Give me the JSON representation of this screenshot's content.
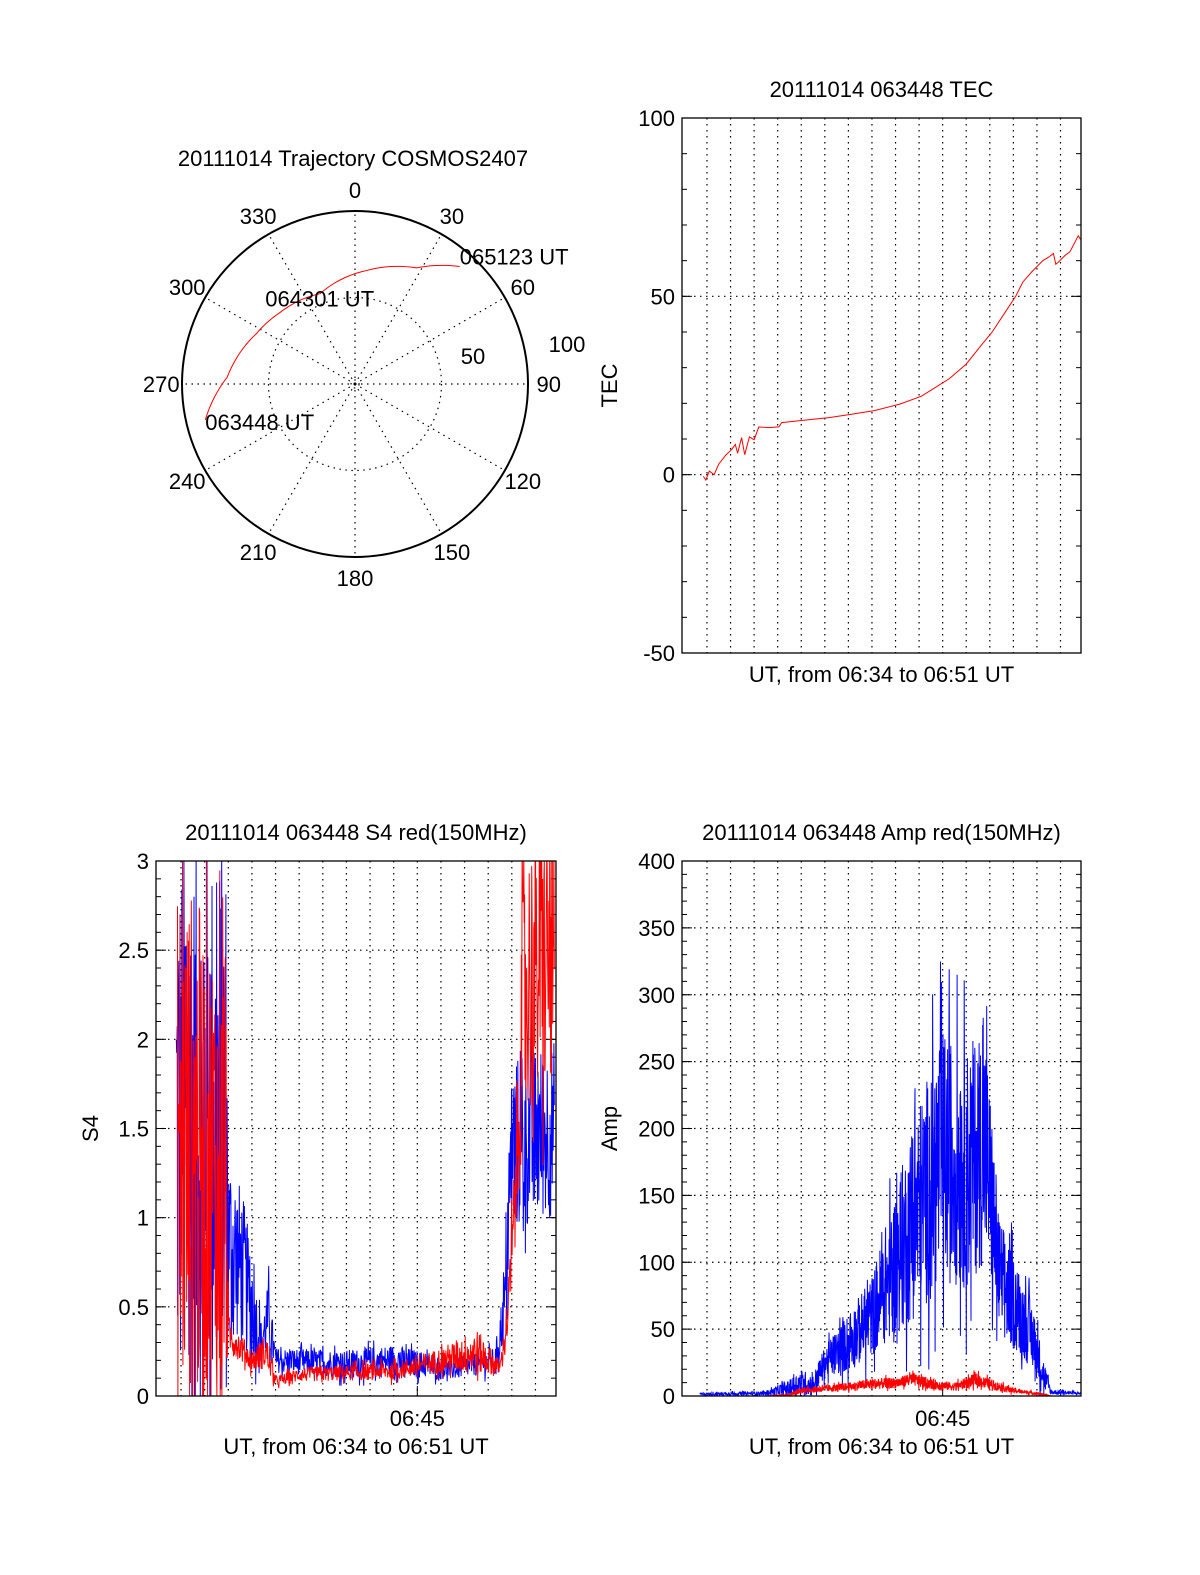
{
  "colors": {
    "red": "#ff0000",
    "blue": "#0000ff",
    "axis": "#000000"
  },
  "chart_data": [
    {
      "type": "polar",
      "title": "20111014 Trajectory COSMOS2407",
      "azimuth_labels": [
        "0",
        "30",
        "60",
        "90",
        "120",
        "150",
        "180",
        "210",
        "240",
        "270",
        "300",
        "330"
      ],
      "azimuth_values": [
        0,
        30,
        60,
        90,
        120,
        150,
        180,
        210,
        240,
        270,
        300,
        330
      ],
      "radial_labels": [
        "50",
        "100"
      ],
      "radial_values": [
        50,
        100
      ],
      "rlim": [
        0,
        100
      ],
      "series": [
        {
          "name": "trajectory",
          "color": "#ff0000",
          "points": [
            [
              256.5,
              89
            ],
            [
              273,
              74
            ],
            [
              297,
              64
            ],
            [
              313,
              60
            ],
            [
              339,
              56
            ],
            [
              6,
              66
            ],
            [
              28,
              76
            ],
            [
              41.7,
              91
            ]
          ]
        }
      ],
      "annotations": [
        {
          "text": "063448 UT",
          "az": 256.5,
          "r": 89
        },
        {
          "text": "064301 UT",
          "az": 339,
          "r": 56
        },
        {
          "text": "065123 UT",
          "az": 41.7,
          "r": 91
        }
      ]
    },
    {
      "type": "line",
      "title": "20111014 063448 TEC",
      "ylabel": "TEC",
      "xlabel": "UT, from 06:34 to 06:51 UT",
      "xlim": [
        -0.06,
        16.87
      ],
      "ylim": [
        -50,
        100
      ],
      "yticks": [
        -50,
        0,
        50,
        100
      ],
      "ytick_labels": [
        "-50",
        "0",
        "50",
        "100"
      ],
      "yminor": 10,
      "xgrid": [
        1,
        2,
        3,
        4,
        5,
        6,
        7,
        8,
        9,
        10,
        11,
        12,
        13,
        14,
        15,
        16
      ],
      "xticks": [],
      "xtick_labels": [],
      "series": [
        {
          "name": "TEC",
          "color": "#ff0000",
          "points": [
            [
              0.85,
              -0.5
            ],
            [
              0.95,
              -1.5
            ],
            [
              1.1,
              1
            ],
            [
              1.3,
              0
            ],
            [
              1.5,
              3
            ],
            [
              1.8,
              5.5
            ],
            [
              2.04,
              7
            ],
            [
              2.2,
              8.5
            ],
            [
              2.3,
              6
            ],
            [
              2.47,
              10.4
            ],
            [
              2.6,
              5.6
            ],
            [
              2.8,
              10.6
            ],
            [
              3.0,
              9.8
            ],
            [
              3.2,
              13.4
            ],
            [
              3.6,
              13.2
            ],
            [
              4.05,
              13.4
            ],
            [
              4.17,
              14.6
            ],
            [
              5.0,
              15.2
            ],
            [
              6.18,
              16
            ],
            [
              7.2,
              17
            ],
            [
              8.13,
              18
            ],
            [
              9.2,
              19.8
            ],
            [
              10.1,
              22
            ],
            [
              10.7,
              24.5
            ],
            [
              11.3,
              27
            ],
            [
              12.0,
              31
            ],
            [
              12.6,
              36
            ],
            [
              13.1,
              40
            ],
            [
              13.6,
              45
            ],
            [
              14.1,
              50
            ],
            [
              14.4,
              54
            ],
            [
              14.8,
              57
            ],
            [
              15.25,
              60
            ],
            [
              15.5,
              61
            ],
            [
              15.7,
              62
            ],
            [
              15.8,
              59
            ],
            [
              15.9,
              59.5
            ],
            [
              16.2,
              61.5
            ],
            [
              16.4,
              62.5
            ],
            [
              16.6,
              65
            ],
            [
              16.75,
              67
            ],
            [
              16.85,
              66
            ]
          ]
        }
      ]
    },
    {
      "type": "line",
      "title": "20111014 063448 S4 red(150MHz)",
      "ylabel": "S4",
      "xlabel": "UT, from 06:34 to 06:51 UT",
      "xlim": [
        -0.06,
        16.87
      ],
      "ylim": [
        0,
        3
      ],
      "yticks": [
        0,
        0.5,
        1,
        1.5,
        2,
        2.5,
        3
      ],
      "ytick_labels": [
        "0",
        "0.5",
        "1",
        "1.5",
        "2",
        "2.5",
        "3"
      ],
      "yminor": 0.1,
      "xgrid": [
        1,
        2,
        3,
        4,
        5,
        6,
        7,
        8,
        9,
        10,
        11,
        12,
        13,
        14,
        15,
        16
      ],
      "xticks": [
        11
      ],
      "xtick_labels": [
        "06:45"
      ],
      "series": [
        {
          "name": "blue",
          "color": "#0000ff",
          "samples": 900,
          "profile": [
            [
              0.8,
              1.5,
              1.6
            ],
            [
              2.9,
              1.5,
              1.6
            ],
            [
              3.0,
              0.9,
              0.5
            ],
            [
              3.6,
              0.7,
              0.45
            ],
            [
              4.0,
              0.5,
              0.3
            ],
            [
              4.4,
              0.3,
              0.12
            ],
            [
              4.7,
              0.45,
              0.2
            ],
            [
              5.0,
              0.2,
              0.07
            ],
            [
              8.0,
              0.18,
              0.08
            ],
            [
              10.0,
              0.2,
              0.09
            ],
            [
              12.5,
              0.15,
              0.06
            ],
            [
              14.3,
              0.2,
              0.07
            ],
            [
              14.7,
              0.5,
              0.2
            ],
            [
              15.0,
              1.4,
              0.5
            ],
            [
              16.8,
              1.5,
              0.5
            ]
          ]
        },
        {
          "name": "red",
          "color": "#ff0000",
          "samples": 900,
          "profile": [
            [
              0.85,
              1.4,
              1.6
            ],
            [
              2.9,
              1.2,
              1.3
            ],
            [
              3.0,
              0.35,
              0.1
            ],
            [
              4.0,
              0.2,
              0.06
            ],
            [
              4.6,
              0.25,
              0.1
            ],
            [
              5.0,
              0.08,
              0.03
            ],
            [
              6.0,
              0.12,
              0.04
            ],
            [
              10.0,
              0.14,
              0.05
            ],
            [
              12.0,
              0.2,
              0.07
            ],
            [
              13.5,
              0.25,
              0.13
            ],
            [
              14.5,
              0.16,
              0.04
            ],
            [
              14.8,
              0.4,
              0.1
            ],
            [
              15.1,
              1.0,
              0.3
            ],
            [
              15.5,
              2.3,
              0.8
            ],
            [
              16.8,
              2.5,
              0.8
            ]
          ]
        }
      ]
    },
    {
      "type": "line",
      "title": "20111014 063448 Amp red(150MHz)",
      "ylabel": "Amp",
      "xlabel": "UT, from 06:34 to 06:51 UT",
      "xlim": [
        -0.06,
        16.87
      ],
      "ylim": [
        0,
        400
      ],
      "yticks": [
        0,
        50,
        100,
        150,
        200,
        250,
        300,
        350,
        400
      ],
      "ytick_labels": [
        "0",
        "50",
        "100",
        "150",
        "200",
        "250",
        "300",
        "350",
        "400"
      ],
      "yminor": 10,
      "xgrid": [
        1,
        2,
        3,
        4,
        5,
        6,
        7,
        8,
        9,
        10,
        11,
        12,
        13,
        14,
        15,
        16
      ],
      "xticks": [
        11
      ],
      "xtick_labels": [
        "06:45"
      ],
      "series": [
        {
          "name": "blue",
          "color": "#0000ff",
          "samples": 1400,
          "profile": [
            [
              0.7,
              1.5,
              1
            ],
            [
              3.5,
              2,
              1.5
            ],
            [
              4.5,
              6,
              6
            ],
            [
              5.0,
              10,
              10
            ],
            [
              5.5,
              8,
              8
            ],
            [
              6.0,
              25,
              12
            ],
            [
              7.0,
              40,
              22
            ],
            [
              8.0,
              60,
              30
            ],
            [
              9.0,
              100,
              55
            ],
            [
              10.0,
              140,
              80
            ],
            [
              11.0,
              180,
              95
            ],
            [
              12.0,
              170,
              90
            ],
            [
              12.8,
              190,
              90
            ],
            [
              13.4,
              90,
              45
            ],
            [
              14.0,
              70,
              35
            ],
            [
              14.8,
              45,
              25
            ],
            [
              15.3,
              15,
              12
            ],
            [
              15.6,
              3,
              2
            ],
            [
              16.85,
              2,
              1
            ]
          ]
        },
        {
          "name": "red",
          "color": "#ff0000",
          "samples": 1400,
          "profile": [
            [
              3.5,
              0,
              0
            ],
            [
              4.5,
              1,
              1
            ],
            [
              5.0,
              4,
              2
            ],
            [
              7.0,
              7,
              3
            ],
            [
              8.0,
              9,
              4
            ],
            [
              9.2,
              10,
              4
            ],
            [
              9.6,
              13,
              5
            ],
            [
              10.5,
              9,
              4
            ],
            [
              11.5,
              7,
              3
            ],
            [
              12.4,
              12,
              5
            ],
            [
              13.0,
              9,
              4
            ],
            [
              14.0,
              4,
              2
            ],
            [
              15.0,
              2,
              1
            ],
            [
              15.6,
              0,
              0
            ],
            [
              16.85,
              0,
              0
            ]
          ]
        }
      ]
    }
  ]
}
